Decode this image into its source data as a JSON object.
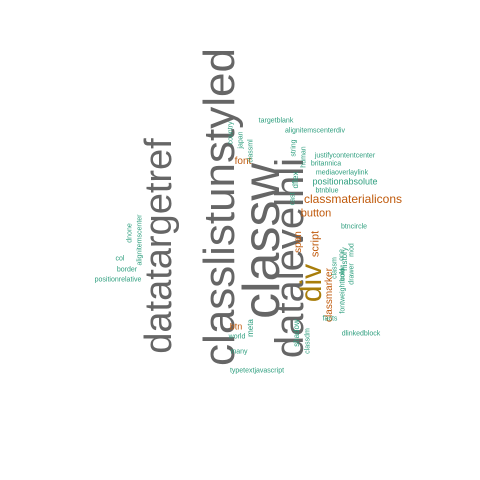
{
  "cloud": {
    "words": [
      {
        "key": "classlistunstyled",
        "text": "classlistunstyled"
      },
      {
        "key": "classw",
        "text": "classw"
      },
      {
        "key": "datalevelhli",
        "text": "datalevelhli"
      },
      {
        "key": "datatargetref",
        "text": "datatargetref"
      },
      {
        "key": "div",
        "text": "div"
      },
      {
        "key": "classmaterialicons",
        "text": "classmaterialicons"
      },
      {
        "key": "button",
        "text": "button"
      },
      {
        "key": "font",
        "text": "font"
      },
      {
        "key": "script",
        "text": "script"
      },
      {
        "key": "span",
        "text": "span"
      },
      {
        "key": "classmarker",
        "text": "classmarker"
      },
      {
        "key": "btn",
        "text": "btn"
      },
      {
        "key": "positionabsolute",
        "text": "positionabsolute"
      },
      {
        "key": "targetblank",
        "text": "targetblank"
      },
      {
        "key": "alignitemscenterdiv",
        "text": "alignitemscenterdiv"
      },
      {
        "key": "justifycontentcenter",
        "text": "justifycontentcenter"
      },
      {
        "key": "britannica",
        "text": "britannica"
      },
      {
        "key": "mediaoverlaylink",
        "text": "mediaoverlaylink"
      },
      {
        "key": "btnblue",
        "text": "btnblue"
      },
      {
        "key": "btncircle",
        "text": "btncircle"
      },
      {
        "key": "dlinkedblock",
        "text": "dlinkedblock"
      },
      {
        "key": "typetextjavascript",
        "text": "typetextjavascript"
      },
      {
        "key": "many",
        "text": "many"
      },
      {
        "key": "world",
        "text": "world"
      },
      {
        "key": "border",
        "text": "border"
      },
      {
        "key": "col",
        "text": "col"
      },
      {
        "key": "positionrelative",
        "text": "positionrelative"
      },
      {
        "key": "alignitemscenter",
        "text": "alignitemscenter"
      },
      {
        "key": "dnone",
        "text": "dnone"
      },
      {
        "key": "country",
        "text": "country"
      },
      {
        "key": "japan",
        "text": "japan"
      },
      {
        "key": "classml",
        "text": "classml"
      },
      {
        "key": "string",
        "text": "string"
      },
      {
        "key": "human",
        "text": "human"
      },
      {
        "key": "dflex",
        "text": "dflex"
      },
      {
        "key": "cast",
        "text": "cast"
      },
      {
        "key": "meta",
        "text": "meta"
      },
      {
        "key": "shadow",
        "text": "shadow"
      },
      {
        "key": "facts",
        "text": "facts"
      },
      {
        "key": "classdm",
        "text": "classdm"
      },
      {
        "key": "one",
        "text": "one"
      },
      {
        "key": "classm",
        "text": "classm"
      },
      {
        "key": "color",
        "text": "color"
      },
      {
        "key": "mod",
        "text": "mod"
      },
      {
        "key": "history",
        "text": "history"
      },
      {
        "key": "fontweightbold",
        "text": "fontweightbold"
      },
      {
        "key": "drawer",
        "text": "drawer"
      }
    ]
  },
  "colors": {
    "large_words": "#666666",
    "orange_words": "#c05a0c",
    "gold_words": "#a87d0a",
    "small_words": "#2e9e7e"
  }
}
